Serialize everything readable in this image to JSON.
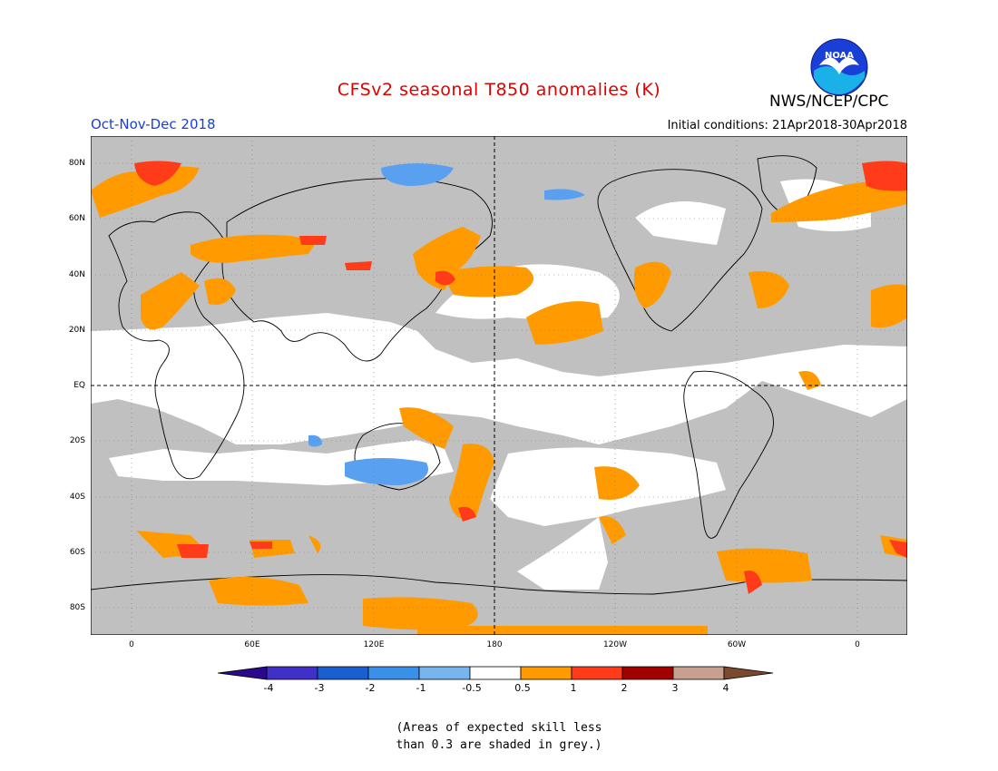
{
  "header": {
    "title": "CFSv2 seasonal T850 anomalies (K)",
    "season": "Oct-Nov-Dec 2018",
    "initial_conditions": "Initial conditions: 21Apr2018-30Apr2018",
    "org": "NWS/NCEP/CPC",
    "logo_text": "NOAA"
  },
  "colors": {
    "title": "#e00000",
    "season": "#1a3fd6",
    "skill_grey": "#c0c0c0",
    "ocean_white": "#ffffff",
    "pos_0_5_1": "#ff9a00",
    "pos_1_2": "#ff3b1a",
    "pos_2_3": "#a00000",
    "pos_3_4": "#c8a090",
    "neg_0_5_1": "#5aa0f0"
  },
  "map": {
    "lat_labels": [
      "80N",
      "60N",
      "40N",
      "20N",
      "EQ",
      "20S",
      "40S",
      "60S",
      "80S"
    ],
    "lon_labels": [
      "0",
      "60E",
      "120E",
      "180",
      "120W",
      "60W",
      "0"
    ]
  },
  "legend": {
    "labels": [
      "-4",
      "-3",
      "-2",
      "-1",
      "-0.5",
      "0.5",
      "1",
      "2",
      "3",
      "4"
    ],
    "colors": [
      "#2a0a8a",
      "#4030c8",
      "#1a5fd0",
      "#3a8fe8",
      "#78b4f0",
      "#ffffff",
      "#ff9a00",
      "#ff3b1a",
      "#a00000",
      "#c8a090",
      "#7a4a30"
    ]
  },
  "note": {
    "line1": "(Areas of expected skill less",
    "line2": "than 0.3 are shaded in grey.)"
  }
}
